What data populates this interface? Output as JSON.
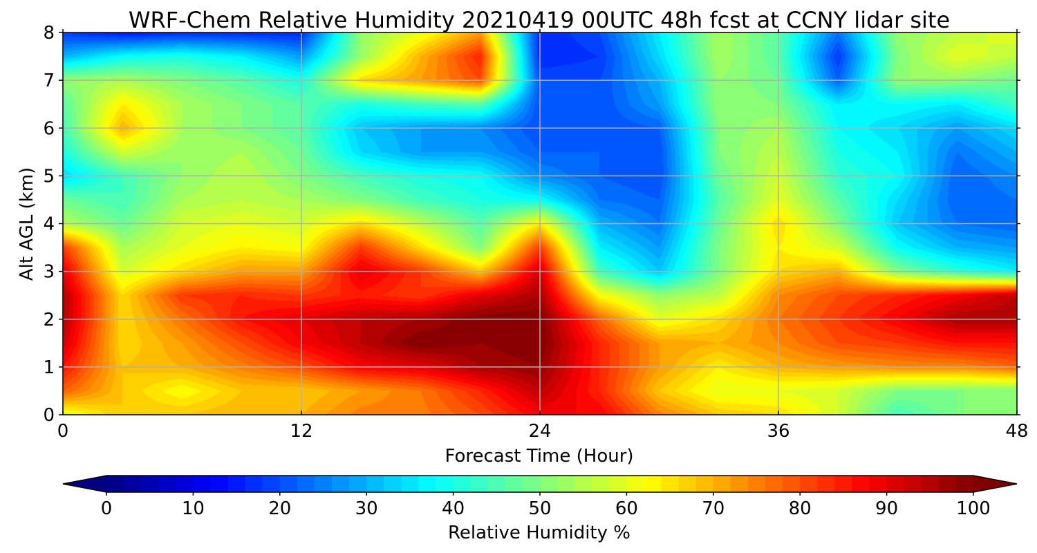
{
  "chart_data": {
    "type": "heatmap",
    "title": "WRF-Chem Relative Humidity 20210419 00UTC 48h fcst at CCNY lidar site",
    "xlabel": "Forecast Time (Hour)",
    "ylabel": "Alt AGL (km)",
    "xlim": [
      0,
      48
    ],
    "ylim": [
      0,
      8
    ],
    "xticks": [
      "0",
      "12",
      "24",
      "36",
      "48"
    ],
    "yticks": [
      "0",
      "1",
      "2",
      "3",
      "4",
      "5",
      "6",
      "7",
      "8"
    ],
    "grid": true,
    "x_hours": [
      0,
      3,
      6,
      9,
      12,
      15,
      18,
      21,
      24,
      27,
      30,
      33,
      36,
      39,
      42,
      45,
      48
    ],
    "y_km": [
      0,
      0.5,
      1,
      1.5,
      2,
      2.5,
      3,
      3.5,
      4,
      4.5,
      5,
      5.5,
      6,
      6.5,
      7,
      7.5,
      8
    ],
    "values": [
      [
        60,
        68,
        68,
        70,
        70,
        75,
        75,
        80,
        88,
        88,
        75,
        68,
        66,
        58,
        44,
        50,
        50
      ],
      [
        78,
        68,
        62,
        68,
        68,
        72,
        76,
        84,
        94,
        84,
        68,
        60,
        60,
        58,
        50,
        50,
        50
      ],
      [
        86,
        68,
        70,
        75,
        80,
        88,
        90,
        96,
        98,
        84,
        72,
        64,
        70,
        72,
        74,
        74,
        78
      ],
      [
        92,
        66,
        72,
        80,
        88,
        94,
        100,
        98,
        100,
        84,
        72,
        70,
        74,
        80,
        82,
        86,
        86
      ],
      [
        95,
        66,
        76,
        86,
        90,
        94,
        96,
        100,
        100,
        78,
        60,
        66,
        76,
        82,
        88,
        96,
        96
      ],
      [
        95,
        66,
        82,
        84,
        82,
        85,
        82,
        90,
        96,
        62,
        52,
        56,
        74,
        80,
        84,
        88,
        94
      ],
      [
        90,
        58,
        66,
        72,
        72,
        90,
        82,
        68,
        92,
        44,
        32,
        50,
        66,
        70,
        50,
        42,
        36
      ],
      [
        82,
        54,
        60,
        64,
        62,
        82,
        66,
        50,
        82,
        36,
        28,
        50,
        64,
        58,
        38,
        30,
        28
      ],
      [
        55,
        48,
        58,
        60,
        58,
        66,
        56,
        46,
        64,
        30,
        24,
        48,
        66,
        50,
        32,
        24,
        22
      ],
      [
        48,
        44,
        54,
        56,
        54,
        50,
        44,
        40,
        38,
        24,
        22,
        46,
        60,
        46,
        34,
        22,
        24
      ],
      [
        34,
        44,
        52,
        56,
        50,
        44,
        40,
        38,
        26,
        22,
        20,
        48,
        58,
        42,
        38,
        22,
        26
      ],
      [
        40,
        58,
        52,
        54,
        48,
        34,
        28,
        28,
        22,
        22,
        20,
        50,
        56,
        40,
        36,
        24,
        30
      ],
      [
        44,
        70,
        54,
        50,
        46,
        32,
        28,
        26,
        20,
        20,
        22,
        50,
        54,
        38,
        34,
        28,
        34
      ],
      [
        46,
        64,
        54,
        50,
        46,
        40,
        44,
        46,
        20,
        20,
        28,
        52,
        50,
        36,
        38,
        36,
        44
      ],
      [
        52,
        54,
        50,
        46,
        40,
        66,
        72,
        80,
        20,
        20,
        30,
        52,
        48,
        22,
        52,
        52,
        48
      ],
      [
        30,
        38,
        40,
        36,
        28,
        52,
        70,
        84,
        16,
        18,
        34,
        54,
        46,
        18,
        50,
        60,
        56
      ],
      [
        18,
        14,
        16,
        16,
        16,
        52,
        60,
        72,
        16,
        20,
        36,
        54,
        46,
        24,
        52,
        56,
        60
      ]
    ],
    "colorbar": {
      "label": "Relative Humidity %",
      "min": 0,
      "max": 100,
      "step": 2,
      "ticks": [
        "0",
        "10",
        "20",
        "30",
        "40",
        "50",
        "60",
        "70",
        "80",
        "90",
        "100"
      ],
      "extend": "both",
      "colormap": "jet"
    }
  }
}
